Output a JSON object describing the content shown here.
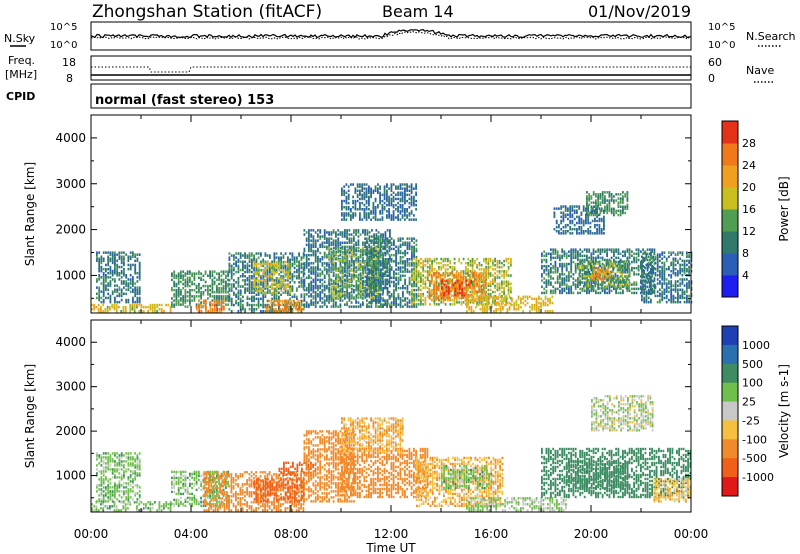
{
  "header": {
    "station": "Zhongshan Station (fitACF)",
    "beam": "Beam 14",
    "date": "01/Nov/2019"
  },
  "noise_panel": {
    "left_label": "N.Sky",
    "left_ticks": [
      "10^5",
      "10^0"
    ],
    "right_ticks": [
      "10^5",
      "10^0"
    ],
    "right_label": "N.Search"
  },
  "freq_panel": {
    "left_label_1": "Freq.",
    "left_label_2": "[MHz]",
    "left_ticks": [
      "18",
      "8"
    ],
    "right_ticks": [
      "60",
      "0"
    ],
    "right_label": "Nave"
  },
  "cpid_panel": {
    "label": "CPID",
    "text": "normal (fast stereo) 153"
  },
  "chart_data": [
    {
      "type": "heatmap",
      "name": "power",
      "ylabel": "Slant Range [km]",
      "ylim": [
        180,
        4500
      ],
      "yticks": [
        1000,
        2000,
        3000,
        4000
      ],
      "xlim": [
        0,
        24
      ],
      "colorbar": {
        "label": "Power [dB]",
        "tick_labels": [
          "4",
          "8",
          "12",
          "16",
          "20",
          "24",
          "28"
        ],
        "levels": [
          0,
          4,
          8,
          12,
          16,
          20,
          24,
          28,
          32
        ],
        "colors": [
          "#1e1ef0",
          "#2b5fb7",
          "#2f7a6a",
          "#4f9e52",
          "#c8bf1e",
          "#f0a020",
          "#f07a1a",
          "#e33217"
        ]
      },
      "regions": [
        {
          "t0": 0.0,
          "t1": 3.2,
          "r0": 200,
          "r1": 350,
          "v": 19
        },
        {
          "t0": 0.2,
          "t1": 2.0,
          "r0": 400,
          "r1": 1500,
          "v": 9
        },
        {
          "t0": 3.2,
          "t1": 5.5,
          "r0": 300,
          "r1": 1100,
          "v": 12
        },
        {
          "t0": 4.2,
          "t1": 5.3,
          "r0": 200,
          "r1": 450,
          "v": 25
        },
        {
          "t0": 5.5,
          "t1": 8.5,
          "r0": 200,
          "r1": 1500,
          "v": 10
        },
        {
          "t0": 6.5,
          "t1": 8.0,
          "r0": 600,
          "r1": 1300,
          "v": 18
        },
        {
          "t0": 7.0,
          "t1": 8.5,
          "r0": 200,
          "r1": 450,
          "v": 24
        },
        {
          "t0": 8.5,
          "t1": 12.0,
          "r0": 300,
          "r1": 2000,
          "v": 9
        },
        {
          "t0": 9.5,
          "t1": 11.5,
          "r0": 500,
          "r1": 1600,
          "v": 14
        },
        {
          "t0": 11.0,
          "t1": 13.0,
          "r0": 300,
          "r1": 1800,
          "v": 10
        },
        {
          "t0": 12.8,
          "t1": 16.8,
          "r0": 350,
          "r1": 1350,
          "v": 17
        },
        {
          "t0": 13.5,
          "t1": 15.8,
          "r0": 450,
          "r1": 1050,
          "v": 24
        },
        {
          "t0": 14.0,
          "t1": 15.2,
          "r0": 550,
          "r1": 900,
          "v": 29
        },
        {
          "t0": 15.0,
          "t1": 18.5,
          "r0": 200,
          "r1": 550,
          "v": 20
        },
        {
          "t0": 18.0,
          "t1": 22.5,
          "r0": 600,
          "r1": 1550,
          "v": 10
        },
        {
          "t0": 19.5,
          "t1": 21.5,
          "r0": 700,
          "r1": 1300,
          "v": 14
        },
        {
          "t0": 20.0,
          "t1": 20.8,
          "r0": 900,
          "r1": 1200,
          "v": 24
        },
        {
          "t0": 18.5,
          "t1": 20.5,
          "r0": 1900,
          "r1": 2500,
          "v": 8
        },
        {
          "t0": 19.8,
          "t1": 21.5,
          "r0": 2300,
          "r1": 2800,
          "v": 12
        },
        {
          "t0": 22.0,
          "t1": 24.0,
          "r0": 400,
          "r1": 1500,
          "v": 9
        },
        {
          "t0": 10.0,
          "t1": 13.0,
          "r0": 2200,
          "r1": 3000,
          "v": 8
        }
      ]
    },
    {
      "type": "heatmap",
      "name": "velocity",
      "xlabel": "Time UT",
      "ylabel": "Slant Range [km]",
      "ylim": [
        180,
        4500
      ],
      "yticks": [
        1000,
        2000,
        3000,
        4000
      ],
      "xlim": [
        0,
        24
      ],
      "xticks": [
        "00:00",
        "04:00",
        "08:00",
        "12:00",
        "16:00",
        "20:00",
        "00:00"
      ],
      "colorbar": {
        "label": "Velocity [m s-1]",
        "tick_labels": [
          "1000",
          "500",
          "100",
          "25",
          "-25",
          "-100",
          "-500",
          "-1000"
        ],
        "levels": [
          1200,
          1000,
          500,
          100,
          25,
          -25,
          -100,
          -500,
          -1000,
          -1200
        ],
        "colors": [
          "#1f3fb5",
          "#2a6fb0",
          "#3d8c62",
          "#6fc04a",
          "#c8c8c8",
          "#f5c040",
          "#f08a2a",
          "#f06018",
          "#e01818"
        ]
      },
      "regions": [
        {
          "t0": 0.0,
          "t1": 3.2,
          "r0": 200,
          "r1": 400,
          "v": 60
        },
        {
          "t0": 0.2,
          "t1": 2.0,
          "r0": 400,
          "r1": 1500,
          "v": 60
        },
        {
          "t0": 3.2,
          "t1": 5.5,
          "r0": 300,
          "r1": 1100,
          "v": 60
        },
        {
          "t0": 4.5,
          "t1": 8.5,
          "r0": 200,
          "r1": 1100,
          "v": -300
        },
        {
          "t0": 6.5,
          "t1": 8.5,
          "r0": 400,
          "r1": 900,
          "v": -600
        },
        {
          "t0": 7.5,
          "t1": 9.0,
          "r0": 1000,
          "r1": 1300,
          "v": -700
        },
        {
          "t0": 8.5,
          "t1": 10.5,
          "r0": 400,
          "r1": 2000,
          "v": -300
        },
        {
          "t0": 10.0,
          "t1": 13.5,
          "r0": 500,
          "r1": 1600,
          "v": -400
        },
        {
          "t0": 13.0,
          "t1": 16.5,
          "r0": 300,
          "r1": 1400,
          "v": -80
        },
        {
          "t0": 14.0,
          "t1": 16.0,
          "r0": 700,
          "r1": 1200,
          "v": 60
        },
        {
          "t0": 15.0,
          "t1": 19.0,
          "r0": 200,
          "r1": 500,
          "v": 40
        },
        {
          "t0": 18.0,
          "t1": 24.0,
          "r0": 500,
          "r1": 1600,
          "v": 200
        },
        {
          "t0": 19.0,
          "t1": 21.5,
          "r0": 700,
          "r1": 1300,
          "v": 300
        },
        {
          "t0": 20.0,
          "t1": 22.5,
          "r0": 2000,
          "r1": 2800,
          "v": 10
        },
        {
          "t0": 10.0,
          "t1": 12.5,
          "r0": 1500,
          "r1": 2300,
          "v": -80
        },
        {
          "t0": 22.5,
          "t1": 24.0,
          "r0": 400,
          "r1": 900,
          "v": -60
        }
      ]
    }
  ]
}
